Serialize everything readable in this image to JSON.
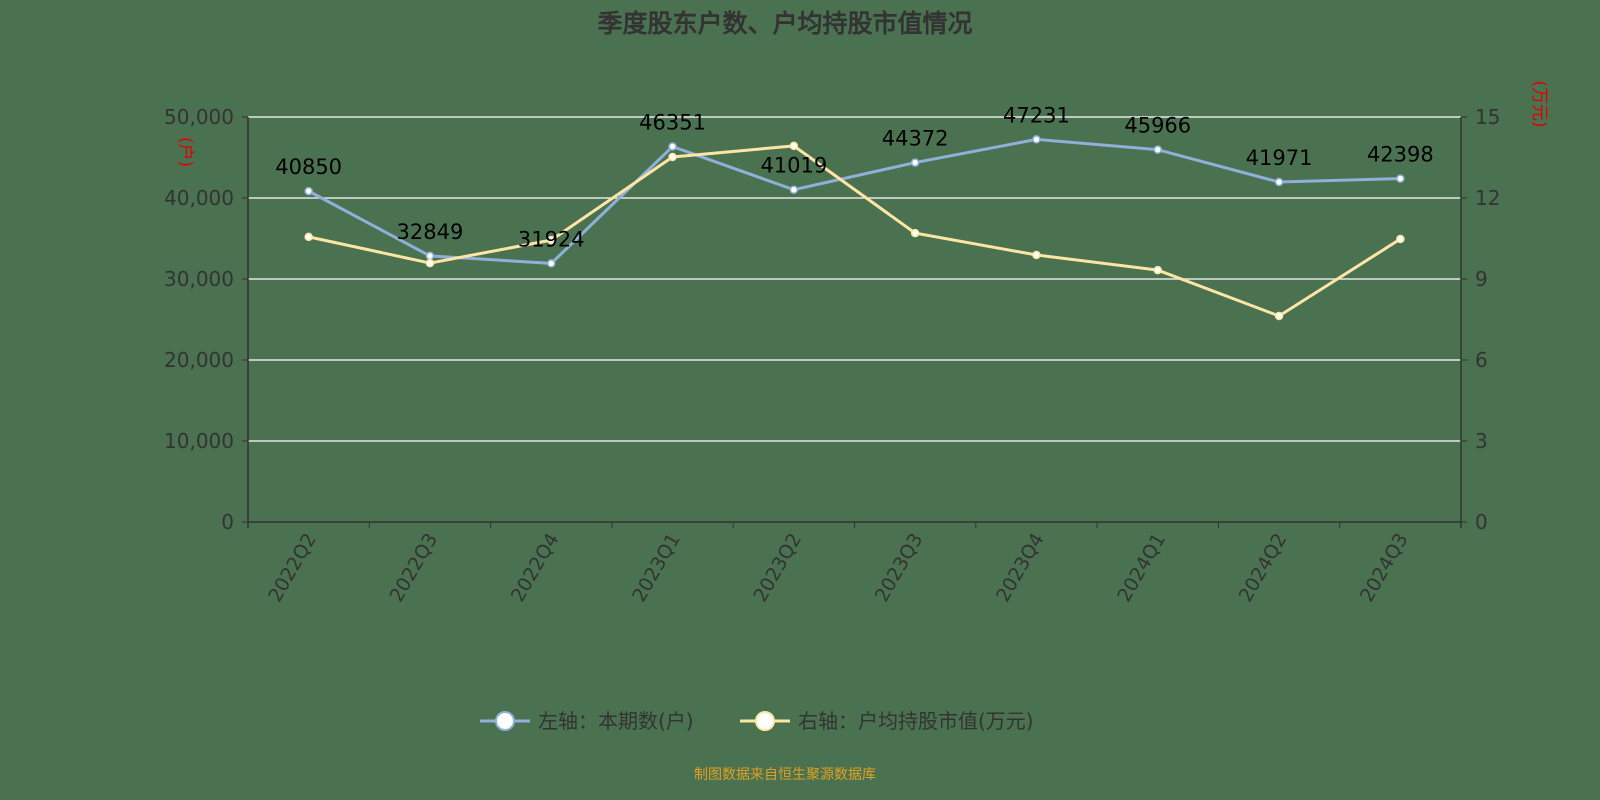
{
  "chart_data": {
    "type": "line",
    "title": "季度股东户数、户均持股市值情况",
    "categories": [
      "2022Q2",
      "2022Q3",
      "2022Q4",
      "2023Q1",
      "2023Q2",
      "2023Q3",
      "2023Q4",
      "2024Q1",
      "2024Q2",
      "2024Q3"
    ],
    "left_axis": {
      "label": "(户)",
      "range": [
        0,
        50000
      ],
      "ticks": [
        "0",
        "10,000",
        "20,000",
        "30,000",
        "40,000",
        "50,000"
      ]
    },
    "right_axis": {
      "label": "(万元)",
      "range": [
        0,
        15
      ],
      "ticks": [
        "0",
        "3",
        "6",
        "9",
        "12",
        "15"
      ]
    },
    "series": [
      {
        "name": "左轴：本期数(户)",
        "axis": "left",
        "color": "#8fb0d8",
        "values": [
          40850,
          32849,
          31924,
          46351,
          41019,
          44372,
          47231,
          45966,
          41971,
          42398
        ],
        "labels": [
          "40850",
          "32849",
          "31924",
          "46351",
          "41019",
          "44372",
          "47231",
          "45966",
          "41971",
          "42398"
        ]
      },
      {
        "name": "右轴：户均持股市值(万元)",
        "axis": "right",
        "color": "#fde5a6",
        "values": [
          10.56,
          9.59,
          10.44,
          13.52,
          13.93,
          10.7,
          9.89,
          9.33,
          7.63,
          10.48
        ]
      }
    ],
    "grid": true,
    "legend": "bottom"
  },
  "footer": "制图数据来自恒生聚源数据库"
}
